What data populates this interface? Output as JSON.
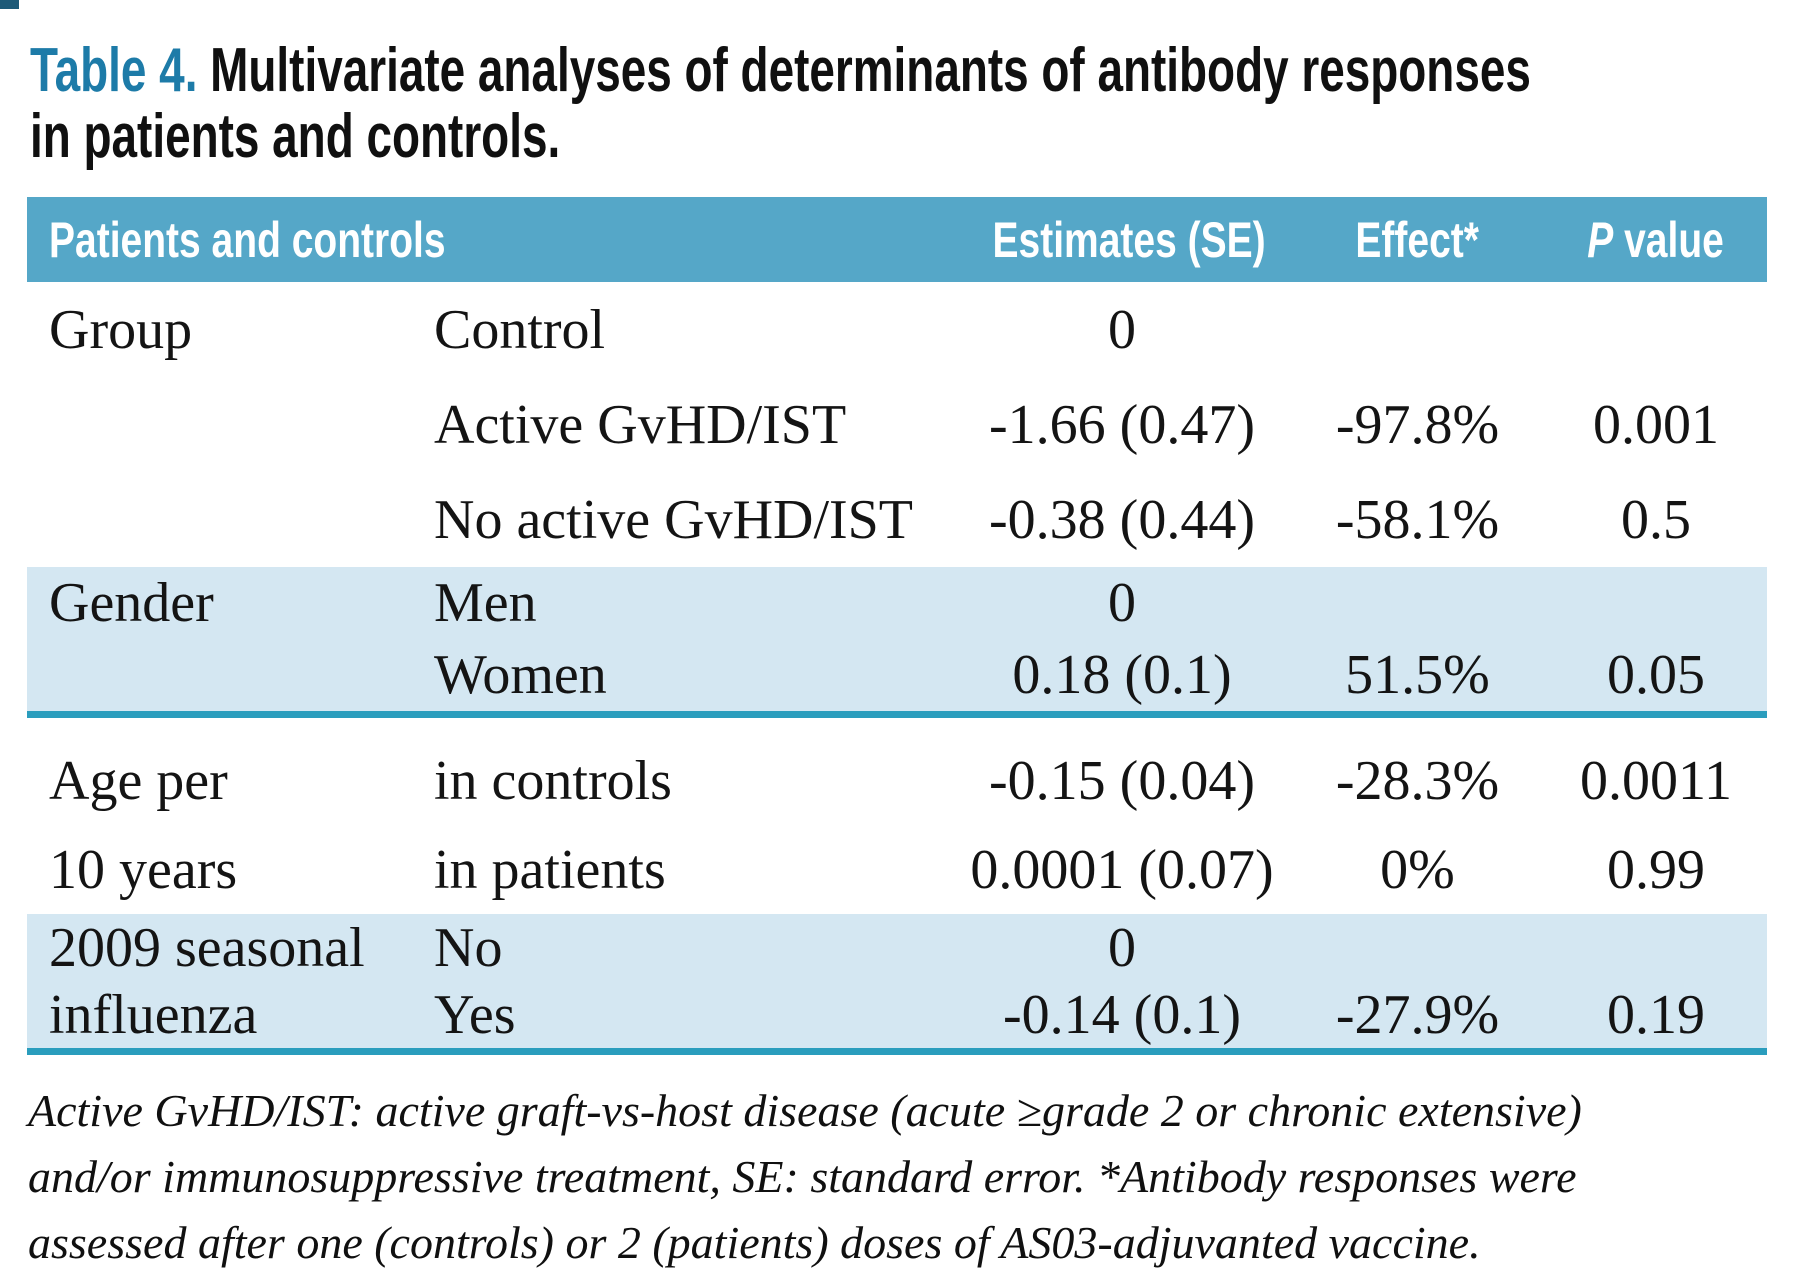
{
  "title": {
    "accent": "Table 4.",
    "line1_rest": " Multivariate analyses of determinants of antibody responses",
    "line2": "in patients and controls."
  },
  "colors": {
    "header_bg": "#55a7c8",
    "alt_row_bg": "#d4e7f2",
    "separator_teal": "#2a9dbd",
    "title_accent": "#1d7ba8",
    "corner_mark": "#1d5a78",
    "header_text": "#ffffff",
    "body_text": "#141414"
  },
  "table": {
    "header": {
      "col1": "Patients and controls",
      "estimates": "Estimates (SE)",
      "effect": "Effect*",
      "p_italic": "P",
      "p_rest": " value"
    },
    "groups": [
      {
        "rows": [
          {
            "c1": "Group",
            "c2": "Control",
            "est": "0",
            "eff": "",
            "p": ""
          },
          {
            "c1": "",
            "c2": "Active GvHD/IST",
            "est": "-1.66 (0.47)",
            "eff": "-97.8%",
            "p": "0.001"
          },
          {
            "c1": "",
            "c2": "No active GvHD/IST",
            "est": "-0.38 (0.44)",
            "eff": "-58.1%",
            "p": "0.5"
          }
        ]
      },
      {
        "rows": [
          {
            "c1": "Gender",
            "c2": "Men",
            "est": "0",
            "eff": "",
            "p": ""
          },
          {
            "c1": "",
            "c2": "Women",
            "est": "0.18 (0.1)",
            "eff": "51.5%",
            "p": "0.05"
          }
        ]
      },
      {
        "rows": [
          {
            "c1": "Age per",
            "c2": "in controls",
            "est": "-0.15 (0.04)",
            "eff": "-28.3%",
            "p": "0.0011"
          },
          {
            "c1": "10 years",
            "c2": "in patients",
            "est": "0.0001 (0.07)",
            "eff": "0%",
            "p": "0.99"
          }
        ]
      },
      {
        "rows": [
          {
            "c1": "2009 seasonal",
            "c2": "No",
            "est": "0",
            "eff": "",
            "p": ""
          },
          {
            "c1": "influenza",
            "c2": "Yes",
            "est": "-0.14 (0.1)",
            "eff": "-27.9%",
            "p": "0.19"
          }
        ]
      }
    ]
  },
  "footnote": {
    "line1": "Active GvHD/IST: active graft-vs-host disease (acute ≥grade 2 or chronic extensive)",
    "line2": "and/or immunosuppressive treatment, SE: standard error. *Antibody responses were",
    "line3": "assessed after one (controls) or 2 (patients) doses of AS03-adjuvanted vaccine."
  }
}
